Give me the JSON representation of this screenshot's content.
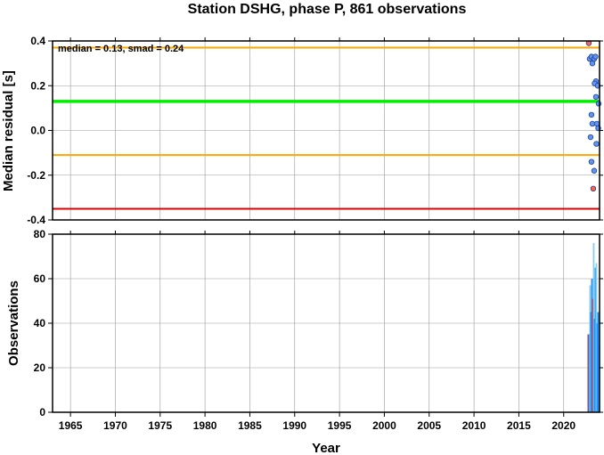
{
  "chart_data": {
    "type": "scatter",
    "title": "Station DSHG, phase P, 861 observations",
    "xlabel": "Year",
    "xlim": [
      1963,
      2024
    ],
    "x_ticks": [
      1965,
      1970,
      1975,
      1980,
      1985,
      1990,
      1995,
      2000,
      2005,
      2010,
      2015,
      2020
    ],
    "grid": true,
    "residual_panel": {
      "ylabel": "Median residual [s]",
      "ylim": [
        -0.4,
        0.4
      ],
      "y_ticks": [
        0.4,
        0.2,
        0.0,
        -0.2,
        -0.4
      ],
      "annotation": "median = 0.13, smad = 0.24",
      "reference_lines": [
        {
          "name": "upper",
          "y": 0.37,
          "color": "#ffa500"
        },
        {
          "name": "median",
          "y": 0.13,
          "color": "#00ee00"
        },
        {
          "name": "lower",
          "y": -0.11,
          "color": "#ffa500"
        },
        {
          "name": "bottom",
          "y": -0.35,
          "color": "#dd0000"
        }
      ],
      "series": [
        {
          "color": "#6495ed",
          "points": [
            {
              "x": 2022.9,
              "y": 0.32
            },
            {
              "x": 2023.1,
              "y": 0.33
            },
            {
              "x": 2023.2,
              "y": 0.3
            },
            {
              "x": 2023.4,
              "y": 0.32
            },
            {
              "x": 2023.55,
              "y": 0.33
            },
            {
              "x": 2023.6,
              "y": 0.22
            },
            {
              "x": 2023.45,
              "y": 0.21
            },
            {
              "x": 2023.8,
              "y": 0.2
            },
            {
              "x": 2023.6,
              "y": 0.15
            },
            {
              "x": 2023.9,
              "y": 0.12
            },
            {
              "x": 2023.1,
              "y": 0.07
            },
            {
              "x": 2023.2,
              "y": 0.03
            },
            {
              "x": 2023.7,
              "y": 0.03
            },
            {
              "x": 2023.85,
              "y": 0.01
            },
            {
              "x": 2023.0,
              "y": -0.03
            },
            {
              "x": 2023.65,
              "y": -0.06
            },
            {
              "x": 2023.1,
              "y": -0.14
            },
            {
              "x": 2023.4,
              "y": -0.18
            }
          ]
        },
        {
          "color": "#ff6347",
          "points": [
            {
              "x": 2022.8,
              "y": 0.39
            },
            {
              "x": 2023.3,
              "y": -0.26
            }
          ]
        }
      ]
    },
    "observations_panel": {
      "ylabel": "Observations",
      "ylim": [
        0,
        80
      ],
      "y_ticks": [
        0,
        20,
        40,
        60,
        80
      ],
      "bars": [
        {
          "x": 2022.75,
          "value": 35,
          "color": "#cd2626"
        },
        {
          "x": 2022.85,
          "value": 35,
          "color": "#1e90ff"
        },
        {
          "x": 2022.95,
          "value": 57,
          "color": "#87ceeb"
        },
        {
          "x": 2023.05,
          "value": 45,
          "color": "#1e90ff"
        },
        {
          "x": 2023.15,
          "value": 60,
          "color": "#1e90ff"
        },
        {
          "x": 2023.25,
          "value": 51,
          "color": "#cd2626"
        },
        {
          "x": 2023.35,
          "value": 76,
          "color": "#87ceeb"
        },
        {
          "x": 2023.45,
          "value": 42,
          "color": "#1e90ff"
        },
        {
          "x": 2023.55,
          "value": 65,
          "color": "#1e90ff"
        },
        {
          "x": 2023.65,
          "value": 67,
          "color": "#87ceeb"
        },
        {
          "x": 2023.75,
          "value": 40,
          "color": "#1e90ff"
        },
        {
          "x": 2023.85,
          "value": 45,
          "color": "#1e90ff"
        },
        {
          "x": 2023.95,
          "value": 30,
          "color": "#1e90ff"
        }
      ]
    }
  }
}
